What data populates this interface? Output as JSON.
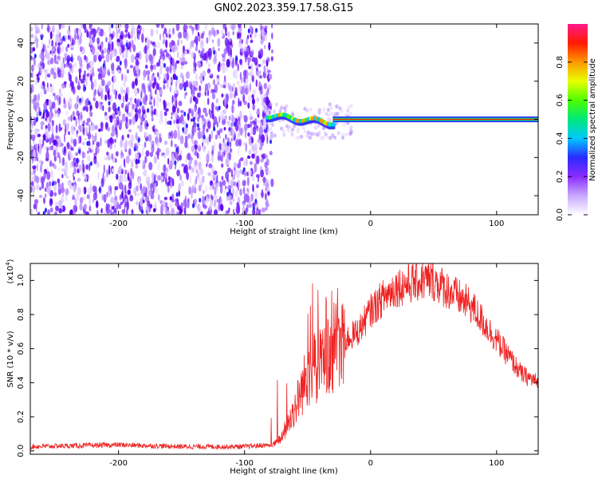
{
  "title": "GN02.2023.359.17.58.G15",
  "chart_data": [
    {
      "type": "heatmap",
      "xlabel": "Height of straight line (km)",
      "ylabel": "Frequency (Hz)",
      "xlim": [
        -270,
        133
      ],
      "ylim": [
        -50,
        50
      ],
      "xticks": [
        -200,
        -100,
        0,
        100
      ],
      "yticks": [
        -40,
        -20,
        0,
        20,
        40
      ],
      "colorbar": {
        "label": "Normalized spectral amplitude",
        "range": [
          0,
          1
        ],
        "ticks": [
          "0.0",
          "0.2",
          "0.4",
          "0.6",
          "0.8"
        ],
        "colors": [
          "#ffffff",
          "#c8a8ff",
          "#8a2cff",
          "#2a2aff",
          "#00c8ff",
          "#00e87a",
          "#4cff00",
          "#e8ff00",
          "#ff9a00",
          "#ff1a00",
          "#ff1a8a"
        ]
      },
      "regions": {
        "noise_x_range": [
          -270,
          -78
        ],
        "signal_x_range": [
          -80,
          133
        ],
        "line_frequency": 0
      }
    },
    {
      "type": "line",
      "xlabel": "Height of straight line (km)",
      "ylabel": "SNR (10 * v/v)",
      "y_multiplier": "(x10",
      "y_multiplier_exp": "4",
      "y_multiplier_close": ")",
      "xlim": [
        -270,
        133
      ],
      "ylim": [
        -0.02,
        1.1
      ],
      "xticks": [
        -200,
        -100,
        0,
        100
      ],
      "yticks": [
        "0.0",
        "0.2",
        "0.4",
        "0.6",
        "0.8",
        "1.0"
      ],
      "series_color": "#ee2222",
      "envelope": {
        "x": [
          -270,
          -200,
          -150,
          -100,
          -80,
          -70,
          -60,
          -50,
          -40,
          -35,
          -30,
          -20,
          -10,
          0,
          10,
          20,
          30,
          40,
          50,
          60,
          70,
          80,
          90,
          100,
          110,
          120,
          133
        ],
        "y": [
          0.01,
          0.02,
          0.01,
          0.01,
          0.02,
          0.08,
          0.25,
          0.45,
          0.5,
          0.55,
          0.6,
          0.65,
          0.7,
          0.82,
          0.9,
          0.96,
          0.98,
          1.0,
          1.0,
          0.95,
          0.9,
          0.85,
          0.75,
          0.65,
          0.55,
          0.45,
          0.4
        ]
      }
    }
  ]
}
